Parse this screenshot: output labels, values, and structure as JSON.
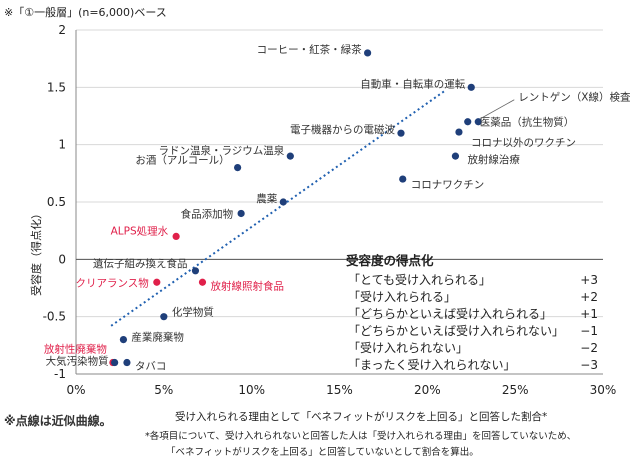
{
  "note_top": "※「①一般層」(n=6,000)ベース",
  "note_dotted": "※点線は近似曲線。",
  "footnotes": [
    "*各項目について、受け入れられないと回答した人は「受け入れられる理由」を回答していないため、",
    "「ベネフィットがリスクを上回る」と回答していないとして割合を算出。"
  ],
  "legend": {
    "title": "受容度の得点化",
    "rows": [
      {
        "label": "「とても受け入れられる」",
        "score": "+3"
      },
      {
        "label": "「受け入れられる」",
        "score": "+2"
      },
      {
        "label": "「どちらかといえば受け入れられる」",
        "score": "+1"
      },
      {
        "label": "「どちらかといえば受け入れられない」",
        "score": "−1"
      },
      {
        "label": "「受け入れられない」",
        "score": "−2"
      },
      {
        "label": "「まったく受け入れられない」",
        "score": "−3"
      }
    ]
  },
  "colors": {
    "navy": "#1f3f7a",
    "red": "#e0204a",
    "trend": "#2060b0",
    "grid": "#d8d8d8"
  },
  "chart_data": {
    "type": "scatter",
    "xlabel": "受け入れられる理由として「ベネフィットがリスクを上回る」と回答した割合*",
    "ylabel": "受容度（得点化）",
    "xlim": [
      0,
      30
    ],
    "ylim": [
      -1,
      2
    ],
    "x_ticks": [
      "0%",
      "5%",
      "10%",
      "15%",
      "20%",
      "25%",
      "30%"
    ],
    "x_tick_values": [
      0,
      5,
      10,
      15,
      20,
      25,
      30
    ],
    "y_ticks": [
      "2",
      "1.5",
      "1",
      "0.5",
      "0",
      "-0.5",
      "-1"
    ],
    "y_tick_values": [
      2,
      1.5,
      1,
      0.5,
      0,
      -0.5,
      -1
    ],
    "grid": "horizontal",
    "trendline": {
      "style": "dotted",
      "from": [
        2.0,
        -0.58
      ],
      "to": [
        21.0,
        1.47
      ]
    },
    "points": [
      {
        "label": "コーヒー・紅茶・緑茶",
        "x": 16.6,
        "y": 1.8,
        "color": "navy"
      },
      {
        "label": "自動車・自転車の運転",
        "x": 22.5,
        "y": 1.5,
        "color": "navy"
      },
      {
        "label": "レントゲン（X線）検査",
        "x": 22.9,
        "y": 1.2,
        "color": "navy"
      },
      {
        "label": "医薬品（抗生物質）",
        "x": 22.3,
        "y": 1.2,
        "color": "navy"
      },
      {
        "label": "コロナ以外のワクチン",
        "x": 21.8,
        "y": 1.11,
        "color": "navy"
      },
      {
        "label": "電子機器からの電磁波",
        "x": 18.5,
        "y": 1.1,
        "color": "navy"
      },
      {
        "label": "放射線治療",
        "x": 21.6,
        "y": 0.9,
        "color": "navy"
      },
      {
        "label": "コロナワクチン",
        "x": 18.6,
        "y": 0.7,
        "color": "navy"
      },
      {
        "label": "ラドン温泉・ラジウム温泉",
        "x": 12.2,
        "y": 0.9,
        "color": "navy"
      },
      {
        "label": "お酒（アルコール）",
        "x": 9.2,
        "y": 0.8,
        "color": "navy"
      },
      {
        "label": "農薬",
        "x": 11.8,
        "y": 0.5,
        "color": "navy"
      },
      {
        "label": "食品添加物",
        "x": 9.4,
        "y": 0.4,
        "color": "navy"
      },
      {
        "label": "ALPS処理水",
        "x": 5.7,
        "y": 0.2,
        "color": "red"
      },
      {
        "label": "遺伝子組み換え食品",
        "x": 6.8,
        "y": -0.1,
        "color": "navy"
      },
      {
        "label": "クリアランス物",
        "x": 4.6,
        "y": -0.2,
        "color": "red"
      },
      {
        "label": "放射線照射食品",
        "x": 7.2,
        "y": -0.2,
        "color": "red"
      },
      {
        "label": "化学物質",
        "x": 5.0,
        "y": -0.5,
        "color": "navy"
      },
      {
        "label": "産業廃棄物",
        "x": 2.7,
        "y": -0.7,
        "color": "navy"
      },
      {
        "label": "放射性廃棄物",
        "x": 2.1,
        "y": -0.9,
        "color": "red"
      },
      {
        "label": "大気汚染物質",
        "x": 2.2,
        "y": -0.9,
        "color": "navy"
      },
      {
        "label": "タバコ",
        "x": 2.9,
        "y": -0.9,
        "color": "navy"
      }
    ]
  }
}
